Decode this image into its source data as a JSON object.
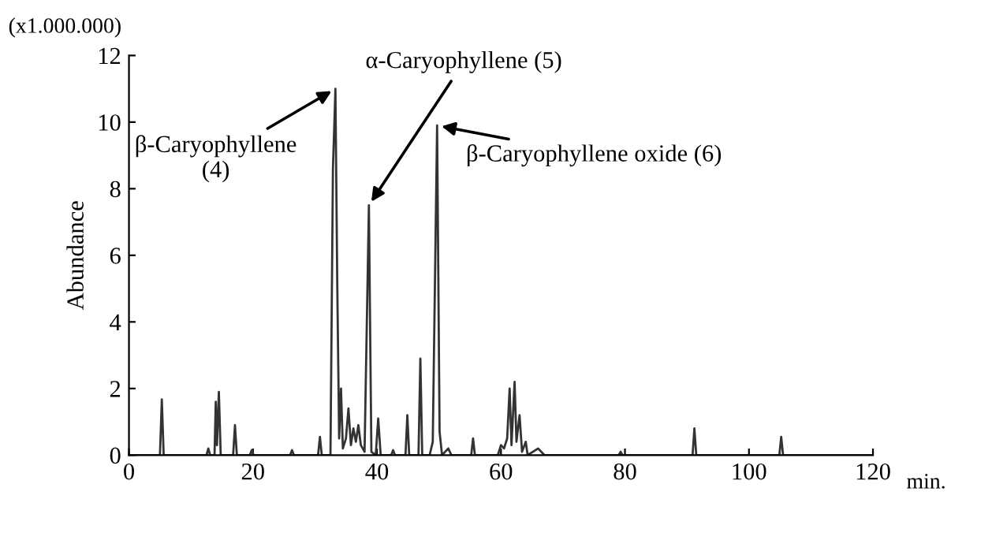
{
  "chart_data": {
    "type": "line",
    "ylabel": "Abundance",
    "xlabel": "min.",
    "annotations": [
      "(x1.000.000)",
      {
        "text": "β-Caryophyllene\n(4)",
        "x": 33.3,
        "y": 11.0
      },
      {
        "text": "α-Caryophyllene (5)",
        "x": 38.7,
        "y": 7.5
      },
      {
        "text": "β-Caryophyllene oxide (6)",
        "x": 49.7,
        "y": 9.9
      }
    ],
    "xlim": [
      0,
      120
    ],
    "xticks": [
      0,
      20,
      40,
      60,
      80,
      100,
      120
    ],
    "ylim": [
      0,
      12
    ],
    "yticks": [
      0,
      2,
      4,
      6,
      8,
      10,
      12
    ],
    "grid": false,
    "legend": false,
    "marker": "none",
    "line_style": "solid",
    "series": [
      {
        "color": "#333333",
        "x": [
          0,
          5.0,
          5.3,
          5.6,
          12.5,
          12.8,
          13.1,
          13.8,
          14.0,
          14.2,
          14.5,
          14.8,
          16.8,
          17.1,
          17.4,
          19.5,
          19.8,
          20.1,
          26,
          26.3,
          26.6,
          30.5,
          30.8,
          31.1,
          32.5,
          32.9,
          33.3,
          33.6,
          33.9,
          34.2,
          34.5,
          35.0,
          35.4,
          35.8,
          36.2,
          36.6,
          37.0,
          37.4,
          38.0,
          38.7,
          39.1,
          39.8,
          40.2,
          40.6,
          42.3,
          42.6,
          42.9,
          44.6,
          44.9,
          45.2,
          46.7,
          47.0,
          47.3,
          48.5,
          49.0,
          49.7,
          50.1,
          50.5,
          51.5,
          52,
          55.2,
          55.5,
          55.8,
          59.5,
          60,
          60.5,
          61.0,
          61.4,
          61.7,
          62.2,
          62.5,
          63.0,
          63.4,
          64.0,
          64.3,
          66,
          67,
          79,
          79.3,
          79.6,
          90.9,
          91.2,
          91.5,
          104.9,
          105.2,
          105.5,
          120
        ],
        "values": [
          0,
          0,
          1.67,
          0,
          0,
          0.2,
          0,
          0,
          1.6,
          0.3,
          1.9,
          0,
          0,
          0.9,
          0,
          0,
          0.15,
          0,
          0,
          0.15,
          0,
          0,
          0.55,
          0,
          0,
          8.6,
          11.0,
          5.1,
          0.5,
          2.0,
          0.2,
          0.5,
          1.4,
          0.3,
          0.8,
          0.4,
          0.9,
          0.3,
          0.1,
          7.5,
          0.1,
          0,
          1.1,
          0,
          0,
          0.15,
          0,
          0,
          1.2,
          0,
          0,
          2.9,
          0,
          0,
          0.4,
          9.9,
          0.7,
          0,
          0.2,
          0,
          0,
          0.5,
          0,
          0,
          0.3,
          0.2,
          0.5,
          2.0,
          0.3,
          2.2,
          0.4,
          1.2,
          0.1,
          0.4,
          0,
          0.2,
          0,
          0,
          0.1,
          0,
          0,
          0.8,
          0,
          0,
          0.55,
          0,
          0
        ]
      }
    ]
  }
}
